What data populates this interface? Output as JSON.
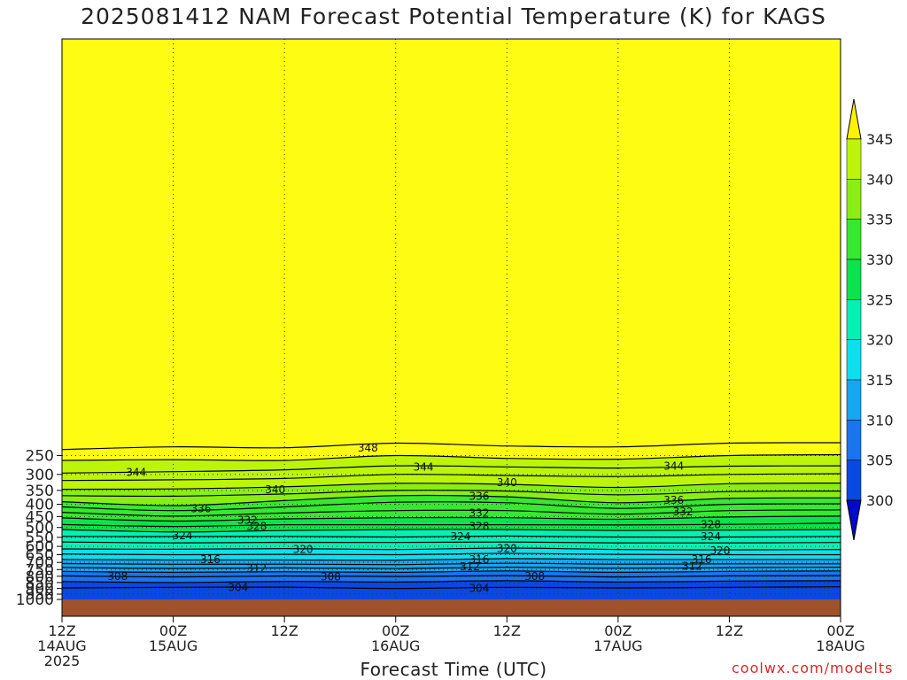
{
  "title": "2025081412 NAM Forecast Potential Temperature (K) for KAGS",
  "credit": "coolwx.com/modelts",
  "chart_data": {
    "type": "heatmap",
    "title": "2025081412 NAM Forecast Potential Temperature (K) for KAGS",
    "xlabel": "Forecast Time (UTC)",
    "ylabel": "",
    "y_scale": "log-pressure",
    "y_reversed": true,
    "ylim": [
      1000,
      210
    ],
    "y_ticks": [
      250,
      300,
      350,
      400,
      450,
      500,
      550,
      600,
      650,
      700,
      750,
      800,
      850,
      900,
      950,
      1000
    ],
    "x_ticks": [
      {
        "hour": 0,
        "line1": "12Z",
        "line2": "14AUG",
        "line3": "2025"
      },
      {
        "hour": 12,
        "line1": "00Z",
        "line2": "15AUG",
        "line3": ""
      },
      {
        "hour": 24,
        "line1": "12Z",
        "line2": "",
        "line3": ""
      },
      {
        "hour": 36,
        "line1": "00Z",
        "line2": "16AUG",
        "line3": ""
      },
      {
        "hour": 48,
        "line1": "12Z",
        "line2": "",
        "line3": ""
      },
      {
        "hour": 60,
        "line1": "00Z",
        "line2": "17AUG",
        "line3": ""
      },
      {
        "hour": 72,
        "line1": "12Z",
        "line2": "",
        "line3": ""
      },
      {
        "hour": 84,
        "line1": "00Z",
        "line2": "18AUG",
        "line3": ""
      }
    ],
    "grid": true,
    "colorbar": {
      "labels": [
        "345",
        "340",
        "335",
        "330",
        "325",
        "320",
        "315",
        "310",
        "305",
        "300"
      ],
      "levels": [
        300,
        305,
        310,
        315,
        320,
        325,
        330,
        335,
        340,
        345
      ],
      "colors": [
        "#0019d6",
        "#0a48e2",
        "#1a74ee",
        "#16a7f0",
        "#0ce0ee",
        "#04f0b4",
        "#0ce24c",
        "#36e830",
        "#88ee14",
        "#bcf50a",
        "#fffc14"
      ],
      "under_color": "#000acc",
      "over_color": "#fff200"
    },
    "contour_interval": 2,
    "isentropes": [
      {
        "theta": 348,
        "p": [
          236,
          230,
          232,
          222,
          228,
          230,
          222,
          221
        ]
      },
      {
        "theta": 346,
        "p": [
          262,
          260,
          262,
          250,
          257,
          259,
          250,
          248
        ]
      },
      {
        "theta": 344,
        "p": [
          296,
          292,
          287,
          276,
          279,
          282,
          277,
          276
        ]
      },
      {
        "theta": 342,
        "p": [
          318,
          316,
          312,
          300,
          303,
          306,
          300,
          298
        ]
      },
      {
        "theta": 340,
        "p": [
          346,
          345,
          338,
          327,
          330,
          340,
          328,
          326
        ]
      },
      {
        "theta": 338,
        "p": [
          368,
          370,
          362,
          350,
          352,
          365,
          354,
          352
        ]
      },
      {
        "theta": 336,
        "p": [
          390,
          405,
          386,
          368,
          372,
          394,
          378,
          376
        ]
      },
      {
        "theta": 334,
        "p": [
          410,
          425,
          410,
          392,
          394,
          416,
          400,
          398
        ]
      },
      {
        "theta": 332,
        "p": [
          432,
          448,
          435,
          425,
          425,
          440,
          425,
          422
        ]
      },
      {
        "theta": 330,
        "p": [
          456,
          470,
          460,
          455,
          455,
          462,
          452,
          448
        ]
      },
      {
        "theta": 328,
        "p": [
          486,
          495,
          487,
          487,
          487,
          488,
          485,
          480
        ]
      },
      {
        "theta": 326,
        "p": [
          510,
          522,
          515,
          510,
          510,
          515,
          513,
          510
        ]
      },
      {
        "theta": 324,
        "p": [
          545,
          546,
          545,
          548,
          543,
          548,
          548,
          545
        ]
      },
      {
        "theta": 322,
        "p": [
          575,
          580,
          577,
          578,
          575,
          580,
          580,
          578
        ]
      },
      {
        "theta": 320,
        "p": [
          615,
          617,
          613,
          618,
          610,
          618,
          620,
          618
        ]
      },
      {
        "theta": 318,
        "p": [
          645,
          650,
          648,
          650,
          642,
          648,
          650,
          650
        ]
      },
      {
        "theta": 316,
        "p": [
          680,
          683,
          683,
          685,
          675,
          680,
          680,
          680
        ]
      },
      {
        "theta": 314,
        "p": [
          708,
          713,
          712,
          715,
          706,
          712,
          710,
          710
        ]
      },
      {
        "theta": 312,
        "p": [
          735,
          742,
          738,
          743,
          733,
          740,
          736,
          733
        ]
      },
      {
        "theta": 310,
        "p": [
          763,
          770,
          765,
          770,
          760,
          770,
          763,
          760
        ]
      },
      {
        "theta": 308,
        "p": [
          797,
          805,
          798,
          802,
          795,
          805,
          797,
          795
        ]
      },
      {
        "theta": 306,
        "p": [
          840,
          850,
          840,
          845,
          835,
          845,
          838,
          835
        ]
      },
      {
        "theta": 304,
        "p": [
          895,
          890,
          888,
          900,
          890,
          895,
          890,
          885
        ]
      }
    ],
    "contour_labels": [
      {
        "text": "348",
        "hour": 33,
        "p": 233
      },
      {
        "text": "344",
        "hour": 8,
        "p": 294
      },
      {
        "text": "344",
        "hour": 39,
        "p": 280
      },
      {
        "text": "344",
        "hour": 66,
        "p": 277
      },
      {
        "text": "340",
        "hour": 23,
        "p": 347
      },
      {
        "text": "340",
        "hour": 48,
        "p": 325
      },
      {
        "text": "336",
        "hour": 15,
        "p": 417
      },
      {
        "text": "336",
        "hour": 45,
        "p": 370
      },
      {
        "text": "336",
        "hour": 66,
        "p": 384
      },
      {
        "text": "332",
        "hour": 20,
        "p": 466
      },
      {
        "text": "332",
        "hour": 45,
        "p": 435
      },
      {
        "text": "332",
        "hour": 67,
        "p": 430
      },
      {
        "text": "328",
        "hour": 21,
        "p": 495
      },
      {
        "text": "328",
        "hour": 45,
        "p": 495
      },
      {
        "text": "328",
        "hour": 70,
        "p": 487
      },
      {
        "text": "324",
        "hour": 13,
        "p": 540
      },
      {
        "text": "324",
        "hour": 43,
        "p": 545
      },
      {
        "text": "324",
        "hour": 70,
        "p": 545
      },
      {
        "text": "320",
        "hour": 26,
        "p": 618
      },
      {
        "text": "320",
        "hour": 48,
        "p": 612
      },
      {
        "text": "320",
        "hour": 71,
        "p": 625
      },
      {
        "text": "316",
        "hour": 16,
        "p": 682
      },
      {
        "text": "316",
        "hour": 45,
        "p": 680
      },
      {
        "text": "316",
        "hour": 69,
        "p": 680
      },
      {
        "text": "312",
        "hour": 21,
        "p": 742
      },
      {
        "text": "312",
        "hour": 44,
        "p": 728
      },
      {
        "text": "312",
        "hour": 68,
        "p": 725
      },
      {
        "text": "308",
        "hour": 6,
        "p": 800
      },
      {
        "text": "308",
        "hour": 29,
        "p": 803
      },
      {
        "text": "308",
        "hour": 51,
        "p": 800
      },
      {
        "text": "304",
        "hour": 19,
        "p": 890
      },
      {
        "text": "304",
        "hour": 45,
        "p": 900
      }
    ]
  }
}
